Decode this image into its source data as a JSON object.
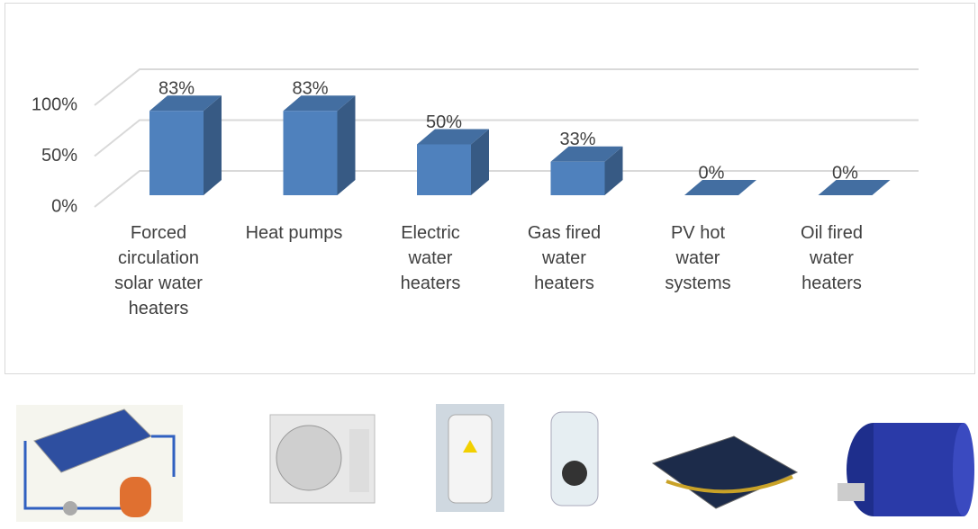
{
  "chart_data": {
    "type": "bar3d",
    "categories": [
      "Forced circulation solar water heaters",
      "Heat pumps",
      "Electric water heaters",
      "Gas fired water heaters",
      "PV hot water systems",
      "Oil fired water heaters"
    ],
    "values": [
      83,
      83,
      50,
      33,
      0,
      0
    ],
    "value_labels": [
      "83%",
      "83%",
      "50%",
      "33%",
      "0%",
      "0%"
    ],
    "color": "#4f81bd",
    "ylim": [
      0,
      100
    ],
    "yticks": [
      {
        "value": 0,
        "label": "0%"
      },
      {
        "value": 50,
        "label": "50%"
      },
      {
        "value": 100,
        "label": "100%"
      }
    ],
    "grid": true
  }
}
